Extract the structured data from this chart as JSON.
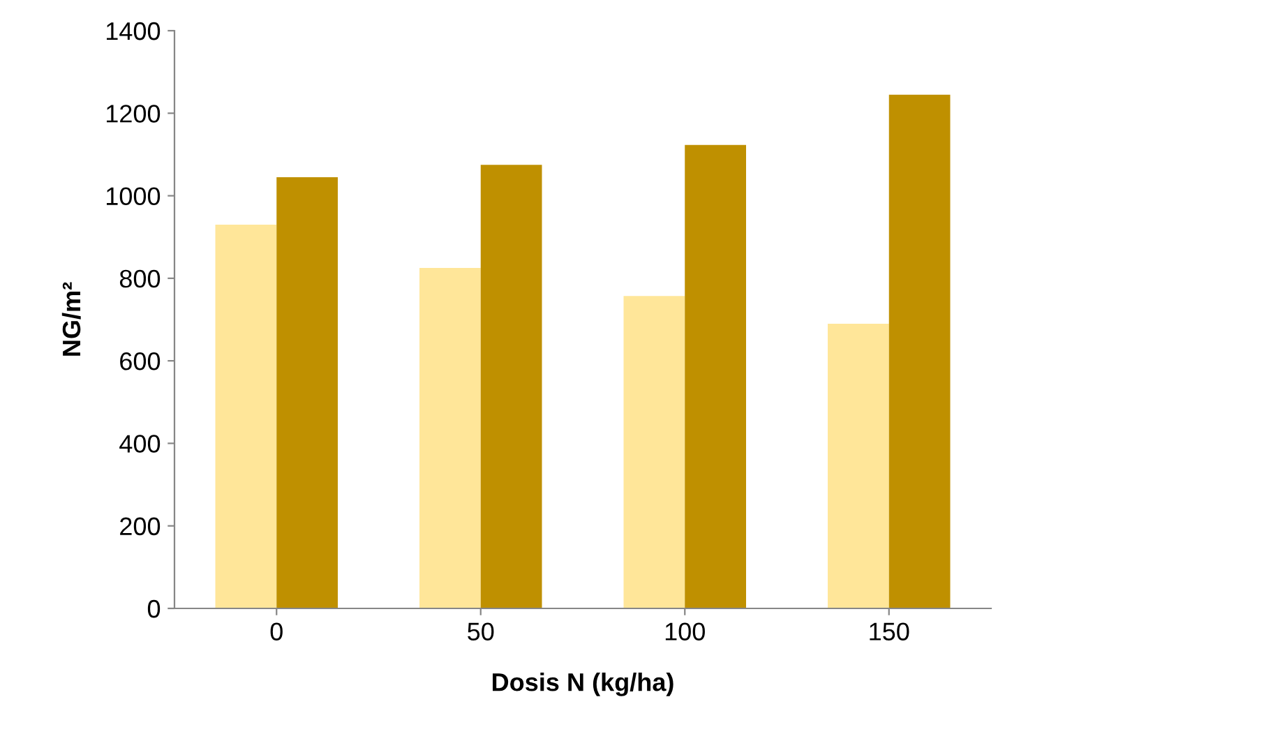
{
  "chart_data": {
    "type": "bar",
    "xlabel": "Dosis N (kg/ha)",
    "ylabel": "NG/m²",
    "categories": [
      "0",
      "50",
      "100",
      "150"
    ],
    "series": [
      {
        "color": "#ffe699",
        "values": [
          930,
          825,
          757,
          690
        ]
      },
      {
        "color": "#bf9000",
        "values": [
          1045,
          1075,
          1123,
          1245
        ]
      }
    ],
    "ylim": [
      0,
      1400
    ],
    "yticks": [
      0,
      200,
      400,
      600,
      800,
      1000,
      1200,
      1400
    ],
    "grid": false
  }
}
